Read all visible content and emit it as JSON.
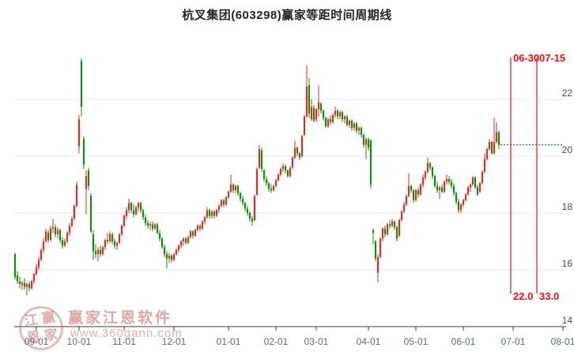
{
  "title": "杭叉集团(603298)赢家等距时间周期线",
  "colors": {
    "up": "#e92a22",
    "down": "#089406",
    "grid": "#e7e7e7",
    "axis": "#3c3c3c",
    "cycle_line": "#f50d0d",
    "dotted_price_line": "#089613",
    "x_label": "#5a6b7c",
    "y_label": "#474f58",
    "watermark": "#cb5c5c"
  },
  "watermark": {
    "seal_chars": [
      "江",
      "赢",
      "恩",
      "家"
    ],
    "name": "赢家江恩软件",
    "url": "www.360gann.com"
  },
  "cycle_lines": [
    {
      "date_label": "06-30",
      "price_label": "22.0",
      "index": 209
    },
    {
      "date_label": "07-15",
      "price_label": "33.0",
      "index": 220
    }
  ],
  "chart_data": {
    "type": "candlestick",
    "title": "杭叉集团(603298)赢家等距时间周期线",
    "ylim": [
      14,
      23.6
    ],
    "y_ticks": [
      22,
      20,
      18,
      16,
      14
    ],
    "grid": "horizontal-only",
    "x_ticks": [
      {
        "label": "09-01",
        "index": 9
      },
      {
        "label": "10-01",
        "index": 27
      },
      {
        "label": "11-01",
        "index": 46
      },
      {
        "label": "12-01",
        "index": 67
      },
      {
        "label": "01-01",
        "index": 90
      },
      {
        "label": "02-01",
        "index": 110
      },
      {
        "label": "03-01",
        "index": 127
      },
      {
        "label": "04-01",
        "index": 149
      },
      {
        "label": "05-01",
        "index": 169
      },
      {
        "label": "06-01",
        "index": 189
      },
      {
        "label": "07-01",
        "index": 210
      },
      {
        "label": "08-01",
        "index": 231
      }
    ],
    "dotted_line_value": 20.4,
    "ohlc": [
      [
        16.55,
        16.6,
        15.65,
        15.75
      ],
      [
        15.8,
        15.95,
        15.5,
        15.6
      ],
      [
        15.6,
        15.75,
        15.35,
        15.5
      ],
      [
        15.45,
        15.6,
        15.3,
        15.55
      ],
      [
        15.55,
        15.7,
        15.3,
        15.4
      ],
      [
        15.4,
        15.55,
        15.1,
        15.5
      ],
      [
        15.5,
        15.6,
        15.25,
        15.35
      ],
      [
        15.35,
        15.65,
        15.3,
        15.6
      ],
      [
        15.6,
        15.9,
        15.5,
        15.85
      ],
      [
        15.85,
        16.2,
        15.8,
        16.1
      ],
      [
        16.1,
        16.45,
        16.0,
        16.35
      ],
      [
        16.35,
        16.75,
        16.3,
        16.7
      ],
      [
        16.7,
        17.1,
        16.6,
        17.0
      ],
      [
        17.0,
        17.45,
        16.95,
        17.35
      ],
      [
        17.3,
        17.4,
        16.95,
        17.05
      ],
      [
        17.05,
        17.55,
        17.0,
        17.45
      ],
      [
        17.45,
        17.8,
        17.3,
        17.5
      ],
      [
        17.5,
        17.6,
        17.15,
        17.25
      ],
      [
        17.25,
        17.5,
        17.1,
        17.4
      ],
      [
        17.4,
        17.45,
        16.95,
        17.05
      ],
      [
        17.05,
        17.15,
        16.75,
        16.85
      ],
      [
        16.85,
        17.1,
        16.8,
        17.0
      ],
      [
        17.0,
        17.35,
        16.95,
        17.3
      ],
      [
        17.3,
        17.65,
        17.2,
        17.55
      ],
      [
        17.55,
        17.9,
        17.5,
        17.8
      ],
      [
        17.8,
        18.3,
        17.75,
        18.25
      ],
      [
        18.25,
        19.1,
        18.2,
        19.0
      ],
      [
        20.35,
        21.45,
        20.1,
        21.3
      ],
      [
        23.35,
        23.45,
        21.4,
        21.75
      ],
      [
        20.6,
        20.7,
        19.55,
        19.7
      ],
      [
        18.85,
        19.5,
        17.95,
        19.3
      ],
      [
        19.5,
        19.6,
        18.8,
        18.95
      ],
      [
        18.6,
        18.7,
        17.3,
        17.35
      ],
      [
        17.25,
        17.4,
        16.35,
        16.65
      ],
      [
        16.65,
        16.9,
        16.4,
        16.55
      ],
      [
        16.55,
        16.8,
        16.3,
        16.7
      ],
      [
        16.7,
        16.85,
        16.45,
        16.55
      ],
      [
        16.55,
        16.85,
        16.5,
        16.8
      ],
      [
        16.8,
        17.1,
        16.7,
        17.05
      ],
      [
        17.05,
        17.3,
        16.9,
        17.0
      ],
      [
        17.0,
        17.35,
        16.95,
        17.25
      ],
      [
        17.25,
        17.3,
        16.9,
        17.0
      ],
      [
        17.0,
        17.1,
        16.75,
        16.85
      ],
      [
        16.85,
        17.0,
        16.7,
        16.95
      ],
      [
        16.95,
        17.3,
        16.9,
        17.25
      ],
      [
        17.25,
        17.6,
        17.2,
        17.55
      ],
      [
        17.55,
        17.95,
        17.5,
        17.9
      ],
      [
        17.9,
        18.2,
        17.8,
        18.1
      ],
      [
        18.1,
        18.5,
        18.0,
        18.35
      ],
      [
        18.35,
        18.4,
        18.0,
        18.1
      ],
      [
        18.1,
        18.3,
        17.85,
        17.95
      ],
      [
        17.95,
        18.25,
        17.9,
        18.2
      ],
      [
        18.2,
        18.4,
        18.05,
        18.35
      ],
      [
        18.35,
        18.4,
        18.0,
        18.1
      ],
      [
        18.1,
        18.15,
        17.75,
        17.85
      ],
      [
        17.85,
        17.95,
        17.55,
        17.65
      ],
      [
        17.65,
        17.75,
        17.45,
        17.55
      ],
      [
        17.55,
        17.7,
        17.4,
        17.6
      ],
      [
        17.6,
        17.7,
        17.35,
        17.45
      ],
      [
        17.45,
        17.65,
        17.4,
        17.6
      ],
      [
        17.6,
        17.65,
        17.25,
        17.3
      ],
      [
        17.3,
        17.4,
        17.0,
        17.1
      ],
      [
        17.1,
        17.15,
        16.75,
        16.8
      ],
      [
        16.8,
        16.9,
        16.45,
        16.55
      ],
      [
        16.55,
        16.65,
        16.05,
        16.4
      ],
      [
        16.4,
        16.6,
        16.25,
        16.5
      ],
      [
        16.5,
        16.55,
        16.25,
        16.35
      ],
      [
        16.35,
        16.6,
        16.3,
        16.55
      ],
      [
        16.55,
        16.75,
        16.5,
        16.7
      ],
      [
        16.7,
        16.9,
        16.6,
        16.85
      ],
      [
        16.85,
        17.05,
        16.75,
        17.0
      ],
      [
        17.0,
        17.15,
        16.85,
        17.1
      ],
      [
        17.1,
        17.15,
        16.9,
        16.95
      ],
      [
        16.95,
        17.2,
        16.9,
        17.15
      ],
      [
        17.15,
        17.4,
        17.1,
        17.35
      ],
      [
        17.35,
        17.4,
        17.1,
        17.2
      ],
      [
        17.2,
        17.45,
        17.15,
        17.4
      ],
      [
        17.4,
        17.6,
        17.35,
        17.55
      ],
      [
        17.55,
        17.6,
        17.35,
        17.45
      ],
      [
        17.45,
        17.75,
        17.4,
        17.7
      ],
      [
        17.7,
        17.9,
        17.6,
        17.85
      ],
      [
        17.85,
        18.2,
        17.8,
        18.1
      ],
      [
        18.1,
        18.15,
        17.8,
        17.9
      ],
      [
        17.9,
        18.1,
        17.8,
        18.05
      ],
      [
        18.05,
        18.1,
        17.8,
        17.9
      ],
      [
        17.9,
        18.15,
        17.85,
        18.1
      ],
      [
        18.1,
        18.3,
        18.0,
        18.25
      ],
      [
        18.25,
        18.5,
        18.2,
        18.45
      ],
      [
        18.45,
        18.5,
        18.2,
        18.3
      ],
      [
        18.3,
        18.6,
        18.25,
        18.55
      ],
      [
        18.55,
        18.8,
        18.5,
        18.75
      ],
      [
        18.75,
        19.35,
        18.7,
        19.0
      ],
      [
        19.0,
        19.05,
        18.7,
        18.8
      ],
      [
        18.8,
        19.0,
        18.7,
        18.95
      ],
      [
        18.95,
        19.0,
        18.6,
        18.7
      ],
      [
        18.7,
        18.75,
        18.4,
        18.5
      ],
      [
        18.5,
        18.6,
        18.25,
        18.35
      ],
      [
        18.35,
        18.4,
        18.05,
        18.15
      ],
      [
        18.15,
        18.25,
        17.9,
        18.0
      ],
      [
        18.0,
        18.05,
        17.7,
        17.8
      ],
      [
        17.8,
        17.9,
        17.55,
        17.7
      ],
      [
        17.75,
        18.65,
        17.7,
        18.6
      ],
      [
        18.65,
        19.6,
        18.6,
        19.55
      ],
      [
        19.6,
        20.4,
        19.55,
        20.25
      ],
      [
        20.2,
        20.3,
        19.45,
        19.55
      ],
      [
        19.5,
        19.55,
        19.1,
        19.2
      ],
      [
        19.2,
        19.3,
        18.95,
        19.05
      ],
      [
        19.05,
        19.1,
        18.75,
        18.85
      ],
      [
        18.85,
        19.0,
        18.7,
        18.8
      ],
      [
        18.8,
        19.0,
        18.75,
        18.95
      ],
      [
        18.95,
        19.2,
        18.9,
        19.15
      ],
      [
        19.15,
        19.4,
        19.1,
        19.35
      ],
      [
        19.35,
        19.6,
        19.3,
        19.55
      ],
      [
        19.55,
        19.75,
        19.45,
        19.65
      ],
      [
        19.65,
        19.7,
        19.4,
        19.5
      ],
      [
        19.5,
        19.55,
        19.25,
        19.3
      ],
      [
        19.3,
        19.65,
        19.25,
        19.6
      ],
      [
        19.6,
        20.0,
        19.55,
        19.95
      ],
      [
        19.95,
        20.55,
        19.9,
        20.3
      ],
      [
        20.3,
        20.35,
        20.0,
        20.1
      ],
      [
        20.1,
        20.15,
        19.85,
        19.95
      ],
      [
        20.0,
        20.75,
        19.95,
        20.7
      ],
      [
        20.75,
        21.45,
        20.7,
        21.4
      ],
      [
        21.4,
        23.2,
        21.35,
        22.45
      ],
      [
        22.5,
        22.75,
        21.35,
        21.5
      ],
      [
        21.3,
        22.0,
        21.25,
        21.75
      ],
      [
        21.7,
        21.8,
        21.2,
        21.25
      ],
      [
        21.3,
        21.7,
        21.2,
        21.65
      ],
      [
        21.65,
        22.5,
        21.4,
        21.9
      ],
      [
        21.85,
        21.9,
        21.5,
        21.6
      ],
      [
        21.6,
        21.65,
        21.25,
        21.35
      ],
      [
        21.35,
        21.4,
        21.0,
        21.05
      ],
      [
        21.05,
        21.35,
        21.0,
        21.3
      ],
      [
        21.3,
        21.45,
        21.1,
        21.2
      ],
      [
        21.2,
        21.5,
        21.15,
        21.45
      ],
      [
        21.45,
        21.75,
        21.35,
        21.6
      ],
      [
        21.6,
        21.65,
        21.3,
        21.4
      ],
      [
        21.4,
        21.6,
        21.3,
        21.55
      ],
      [
        21.55,
        21.6,
        21.2,
        21.3
      ],
      [
        21.3,
        21.45,
        21.15,
        21.4
      ],
      [
        21.4,
        21.45,
        21.05,
        21.1
      ],
      [
        21.1,
        21.3,
        21.0,
        21.25
      ],
      [
        21.25,
        21.3,
        20.9,
        21.0
      ],
      [
        21.0,
        21.2,
        20.9,
        21.15
      ],
      [
        21.15,
        21.2,
        20.8,
        20.9
      ],
      [
        20.9,
        21.05,
        20.75,
        21.0
      ],
      [
        21.0,
        21.05,
        20.65,
        20.75
      ],
      [
        20.75,
        20.8,
        20.3,
        20.4
      ],
      [
        20.4,
        20.65,
        19.9,
        20.6
      ],
      [
        20.6,
        20.65,
        20.2,
        20.3
      ],
      [
        20.55,
        20.6,
        18.85,
        19.0
      ],
      [
        17.4,
        17.45,
        16.9,
        17.3
      ],
      [
        17.0,
        17.05,
        16.3,
        16.4
      ],
      [
        15.9,
        16.55,
        15.55,
        16.45
      ],
      [
        16.45,
        17.15,
        16.4,
        17.1
      ],
      [
        17.1,
        17.5,
        17.0,
        17.45
      ],
      [
        17.45,
        17.55,
        17.15,
        17.25
      ],
      [
        17.25,
        17.65,
        17.2,
        17.6
      ],
      [
        17.6,
        17.75,
        17.45,
        17.55
      ],
      [
        17.55,
        17.8,
        17.5,
        17.7
      ],
      [
        17.7,
        17.75,
        17.4,
        17.5
      ],
      [
        17.5,
        17.55,
        17.0,
        17.1
      ],
      [
        17.2,
        17.8,
        17.15,
        17.75
      ],
      [
        17.75,
        18.1,
        17.7,
        18.05
      ],
      [
        18.05,
        18.4,
        18.0,
        18.3
      ],
      [
        18.3,
        18.65,
        18.25,
        18.6
      ],
      [
        18.6,
        19.4,
        18.55,
        18.95
      ],
      [
        18.95,
        19.0,
        18.7,
        18.8
      ],
      [
        18.8,
        18.85,
        18.35,
        18.45
      ],
      [
        18.45,
        18.85,
        18.4,
        18.8
      ],
      [
        18.8,
        18.9,
        18.55,
        18.65
      ],
      [
        18.65,
        19.05,
        18.6,
        19.0
      ],
      [
        19.0,
        19.35,
        18.9,
        19.25
      ],
      [
        19.25,
        19.5,
        19.15,
        19.45
      ],
      [
        19.45,
        19.95,
        19.4,
        19.75
      ],
      [
        19.75,
        19.8,
        19.5,
        19.6
      ],
      [
        19.6,
        19.65,
        19.2,
        19.3
      ],
      [
        19.3,
        19.35,
        18.9,
        18.95
      ],
      [
        18.95,
        19.1,
        18.7,
        18.8
      ],
      [
        18.8,
        18.95,
        18.5,
        18.9
      ],
      [
        18.9,
        19.0,
        18.7,
        18.75
      ],
      [
        18.75,
        19.15,
        18.7,
        19.1
      ],
      [
        19.1,
        19.35,
        19.0,
        19.2
      ],
      [
        19.2,
        19.3,
        19.0,
        19.1
      ],
      [
        19.1,
        19.2,
        18.85,
        18.95
      ],
      [
        18.95,
        19.05,
        18.6,
        18.7
      ],
      [
        18.7,
        18.75,
        18.3,
        18.4
      ],
      [
        18.4,
        18.5,
        18.0,
        18.1
      ],
      [
        18.1,
        18.35,
        18.0,
        18.3
      ],
      [
        18.3,
        18.5,
        18.2,
        18.45
      ],
      [
        18.45,
        18.7,
        18.4,
        18.65
      ],
      [
        18.65,
        18.95,
        18.6,
        18.9
      ],
      [
        18.9,
        19.05,
        18.75,
        19.0
      ],
      [
        19.0,
        19.3,
        18.95,
        19.25
      ],
      [
        19.25,
        19.3,
        18.85,
        18.9
      ],
      [
        18.9,
        19.0,
        18.6,
        18.65
      ],
      [
        18.75,
        19.1,
        18.7,
        19.05
      ],
      [
        19.05,
        19.5,
        19.0,
        19.45
      ],
      [
        19.45,
        20.1,
        19.4,
        19.9
      ],
      [
        19.9,
        20.3,
        19.85,
        20.25
      ],
      [
        20.25,
        20.6,
        20.2,
        20.5
      ],
      [
        20.5,
        20.55,
        20.05,
        20.1
      ],
      [
        20.1,
        21.35,
        20.05,
        20.5
      ],
      [
        20.5,
        21.2,
        20.45,
        20.85
      ],
      [
        20.85,
        20.9,
        20.25,
        20.4
      ]
    ]
  }
}
